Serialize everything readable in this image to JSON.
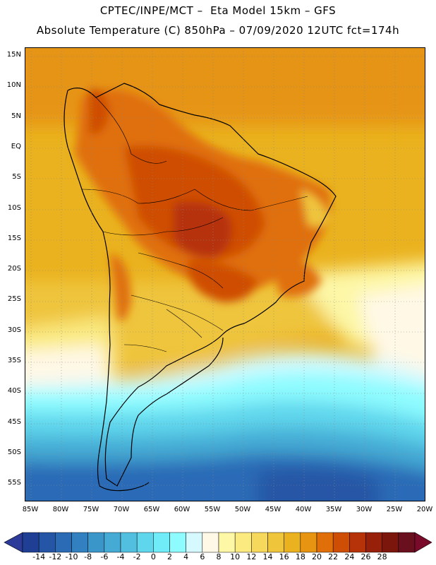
{
  "title_line1": "CPTEC/INPE/MCT –  Eta Model 15km – GFS",
  "title_line2": "Absolute Temperature (C) 850hPa – 07/09/2020 12UTC fct=174h",
  "lat_labels": [
    "15N",
    "10N",
    "5N",
    "EQ",
    "5S",
    "10S",
    "15S",
    "20S",
    "25S",
    "30S",
    "35S",
    "40S",
    "45S",
    "50S",
    "55S"
  ],
  "lon_labels": [
    "85W",
    "80W",
    "75W",
    "70W",
    "65W",
    "60W",
    "55W",
    "50W",
    "45W",
    "40W",
    "35W",
    "30W",
    "25W",
    "20W"
  ],
  "colorbar": {
    "labels": [
      "-14",
      "-12",
      "-10",
      "-8",
      "-6",
      "-4",
      "-2",
      "0",
      "2",
      "4",
      "6",
      "8",
      "10",
      "12",
      "14",
      "16",
      "18",
      "20",
      "22",
      "24",
      "26",
      "28"
    ],
    "colors": [
      "#1f3f94",
      "#2556a5",
      "#2b6bb6",
      "#3380c0",
      "#3a95c9",
      "#45aad4",
      "#52bfe0",
      "#5fd6ec",
      "#6fecf7",
      "#8efcff",
      "#d6f9ff",
      "#fff8e6",
      "#fdf7a6",
      "#faea80",
      "#f5d85c",
      "#efc53c",
      "#eab21e",
      "#e69412",
      "#e06f09",
      "#cf4e06",
      "#b63208",
      "#96200a",
      "#7a160c",
      "#6a0f1e"
    ],
    "low_color": "#2c3a9a",
    "high_color": "#7a0a2a"
  },
  "map": {
    "region": "South America",
    "field": "Absolute Temperature (C) 850hPa"
  }
}
